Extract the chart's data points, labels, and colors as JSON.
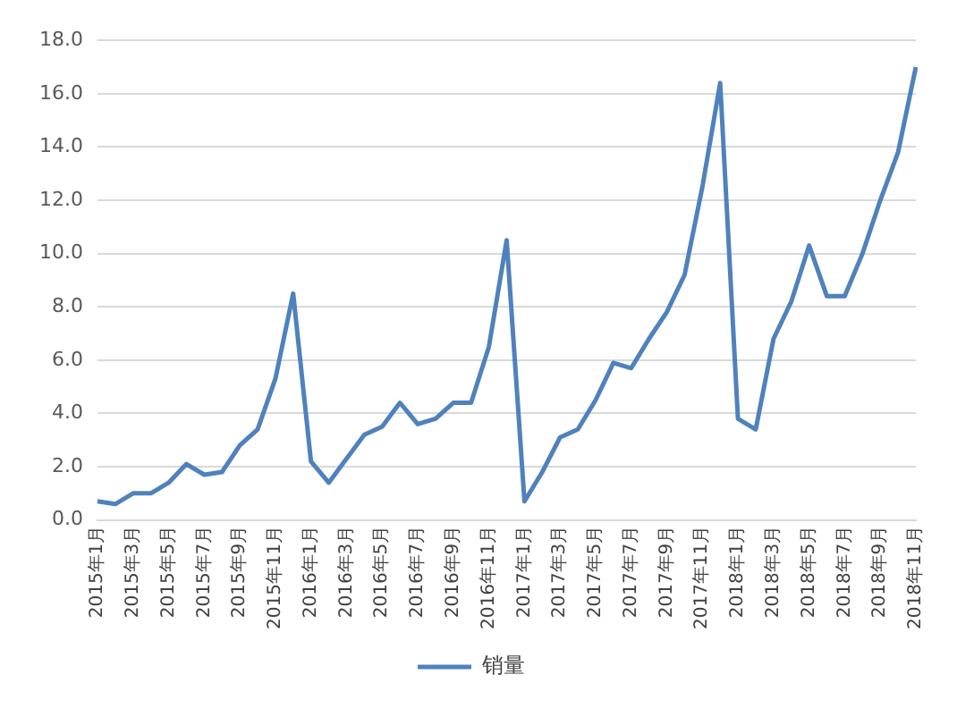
{
  "chart_data": {
    "type": "line",
    "categories": [
      "2015年1月",
      null,
      "2015年3月",
      null,
      "2015年5月",
      null,
      "2015年7月",
      null,
      "2015年9月",
      null,
      "2015年11月",
      null,
      "2016年1月",
      null,
      "2016年3月",
      null,
      "2016年5月",
      null,
      "2016年7月",
      null,
      "2016年9月",
      null,
      "2016年11月",
      null,
      "2017年1月",
      null,
      "2017年3月",
      null,
      "2017年5月",
      null,
      "2017年7月",
      null,
      "2017年9月",
      null,
      "2017年11月",
      null,
      "2018年1月",
      null,
      "2018年3月",
      null,
      "2018年5月",
      null,
      "2018年7月",
      null,
      "2018年9月",
      null,
      "2018年11月"
    ],
    "series": [
      {
        "name": "销量",
        "color": "#4f81bd",
        "values": [
          0.7,
          0.6,
          1.0,
          1.0,
          1.4,
          2.1,
          1.7,
          1.8,
          2.8,
          3.4,
          5.3,
          8.5,
          2.2,
          1.4,
          2.3,
          3.2,
          3.5,
          4.4,
          3.6,
          3.8,
          4.4,
          4.4,
          6.5,
          10.5,
          0.7,
          1.8,
          3.1,
          3.4,
          4.5,
          5.9,
          5.7,
          6.8,
          7.8,
          9.2,
          12.5,
          16.4,
          3.8,
          3.4,
          6.8,
          8.2,
          10.3,
          8.4,
          8.4,
          10.0,
          12.0,
          13.8,
          17.0
        ]
      }
    ],
    "ylim": [
      0,
      18
    ],
    "yticks": [
      {
        "value": 0,
        "label": "0.0"
      },
      {
        "value": 2,
        "label": "2.0"
      },
      {
        "value": 4,
        "label": "4.0"
      },
      {
        "value": 6,
        "label": "6.0"
      },
      {
        "value": 8,
        "label": "8.0"
      },
      {
        "value": 10,
        "label": "10.0"
      },
      {
        "value": 12,
        "label": "12.0"
      },
      {
        "value": 14,
        "label": "14.0"
      },
      {
        "value": 16,
        "label": "16.0"
      },
      {
        "value": 18,
        "label": "18.0"
      }
    ],
    "grid": "y",
    "legend": "bottom",
    "marker": "none",
    "line_style": "solid"
  }
}
